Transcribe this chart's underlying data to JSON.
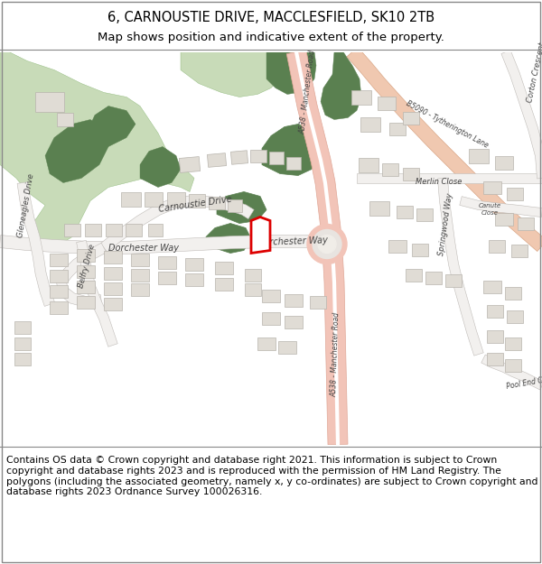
{
  "title_line1": "6, CARNOUSTIE DRIVE, MACCLESFIELD, SK10 2TB",
  "title_line2": "Map shows position and indicative extent of the property.",
  "footer_text": "Contains OS data © Crown copyright and database right 2021. This information is subject to Crown copyright and database rights 2023 and is reproduced with the permission of HM Land Registry. The polygons (including the associated geometry, namely x, y co-ordinates) are subject to Crown copyright and database rights 2023 Ordnance Survey 100026316.",
  "title_fontsize": 10.5,
  "subtitle_fontsize": 9.5,
  "footer_fontsize": 7.8,
  "fig_width": 6.0,
  "fig_height": 6.25,
  "dpi": 100,
  "map_bg": "#ffffff",
  "header_bg": "#ffffff",
  "road_pink": "#f2c4b8",
  "road_pink2": "#f0c8b8",
  "road_white": "#ffffff",
  "road_edge": "#c8c8c8",
  "green_light": "#c8dbb8",
  "green_mid": "#8db878",
  "green_dark": "#5a8050",
  "building_fill": "#e0dcd5",
  "building_stroke": "#b8b4ad",
  "highlight_red": "#dd0000",
  "text_color": "#444444",
  "label_size": 7.0,
  "label_size_sm": 6.0
}
